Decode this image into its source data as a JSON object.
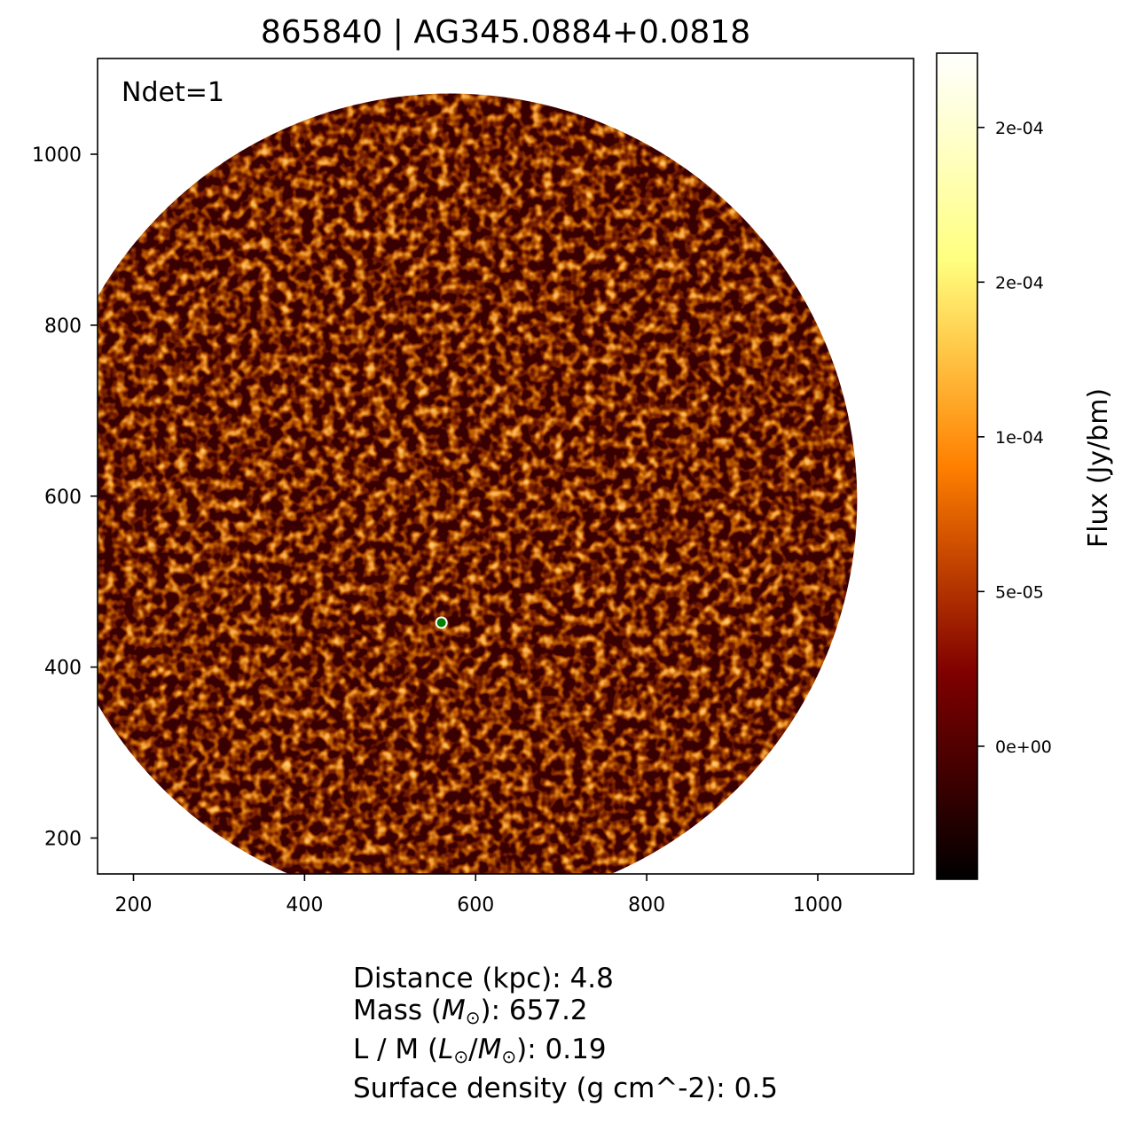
{
  "chart_data": {
    "type": "heatmap",
    "title": "865840 | AG345.0884+0.0818",
    "annotation": "Ndet=1",
    "x_ticks": [
      "200",
      "400",
      "600",
      "800",
      "1000"
    ],
    "y_ticks": [
      "200",
      "400",
      "600",
      "800",
      "1000"
    ],
    "xlim": [
      158,
      1112
    ],
    "ylim": [
      158,
      1112
    ],
    "image_footprint": {
      "shape": "circle",
      "center": [
        570,
        595
      ],
      "radius": 476
    },
    "colormap": "afmhot",
    "colorbar": {
      "label": "Flux (Jy/bm)",
      "tick_labels": [
        "0e+00",
        "5e-05",
        "1e-04",
        "2e-04",
        "2e-04"
      ],
      "tick_values": [
        0.0,
        5e-05,
        0.0001,
        0.00015,
        0.0002
      ],
      "range": [
        -4.3e-05,
        0.000224
      ]
    },
    "marker": {
      "x": 560,
      "y": 452,
      "color": "#008000"
    },
    "grid": false
  },
  "info": {
    "distance": "Distance (kpc): 4.8",
    "mass_prefix": "Mass (",
    "mass_unit": "M",
    "mass_suffix": "): 657.2",
    "lm_prefix": "L / M (",
    "lm_unit_l": "L",
    "lm_sep": "/",
    "lm_unit_m": "M",
    "lm_suffix": "): 0.19",
    "surface": "Surface density (g cm^-2): 0.5",
    "sun_symbol": "⊙"
  }
}
